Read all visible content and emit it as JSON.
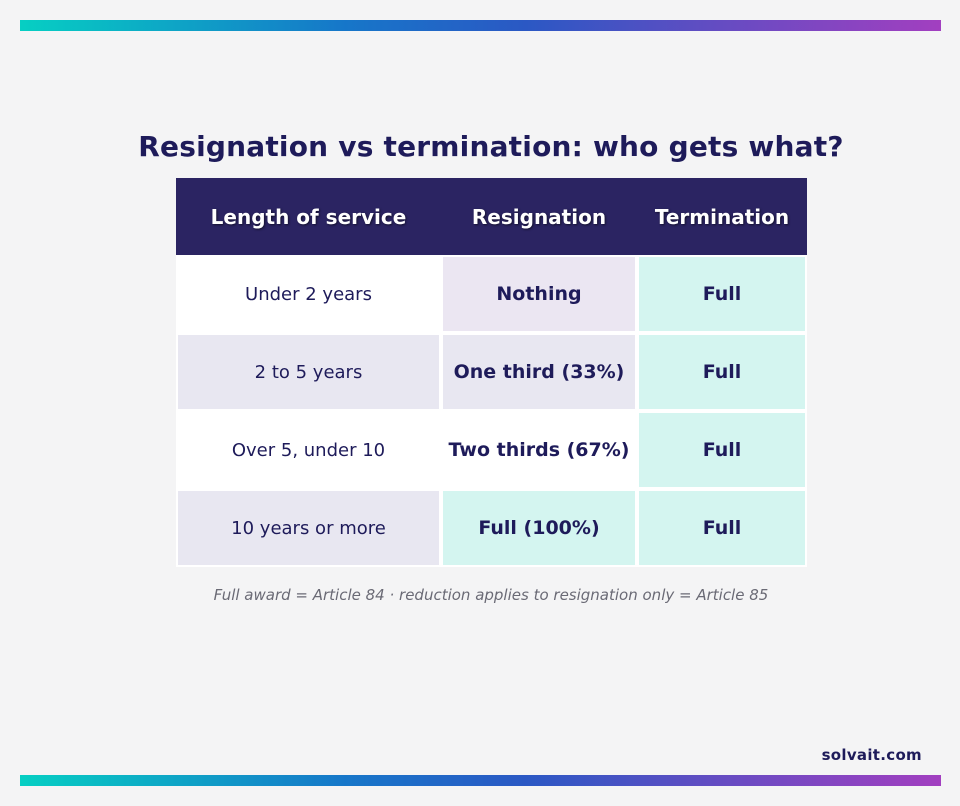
{
  "title": "Resignation vs termination: who gets what?",
  "table": {
    "headers": [
      "Length of service",
      "Resignation",
      "Termination"
    ],
    "rows": [
      {
        "service": "Under 2 years",
        "resignation": "Nothing",
        "termination": "Full"
      },
      {
        "service": "2 to 5 years",
        "resignation": "One third (33%)",
        "termination": "Full"
      },
      {
        "service": "Over 5, under 10",
        "resignation": "Two thirds (67%)",
        "termination": "Full"
      },
      {
        "service": "10 years or more",
        "resignation": "Full (100%)",
        "termination": "Full"
      }
    ]
  },
  "footnote": "Full award = Article 84 · reduction applies to resignation only = Article 85",
  "brand": "solvait.com",
  "colors": {
    "header_bg": "#2b2462",
    "text": "#1e1b5a",
    "mint": "#d4f5f0",
    "lavender": "#ebe6f2",
    "grey": "#e8e7f1",
    "gradient_start": "#06cfc3",
    "gradient_end": "#a23fc0"
  }
}
